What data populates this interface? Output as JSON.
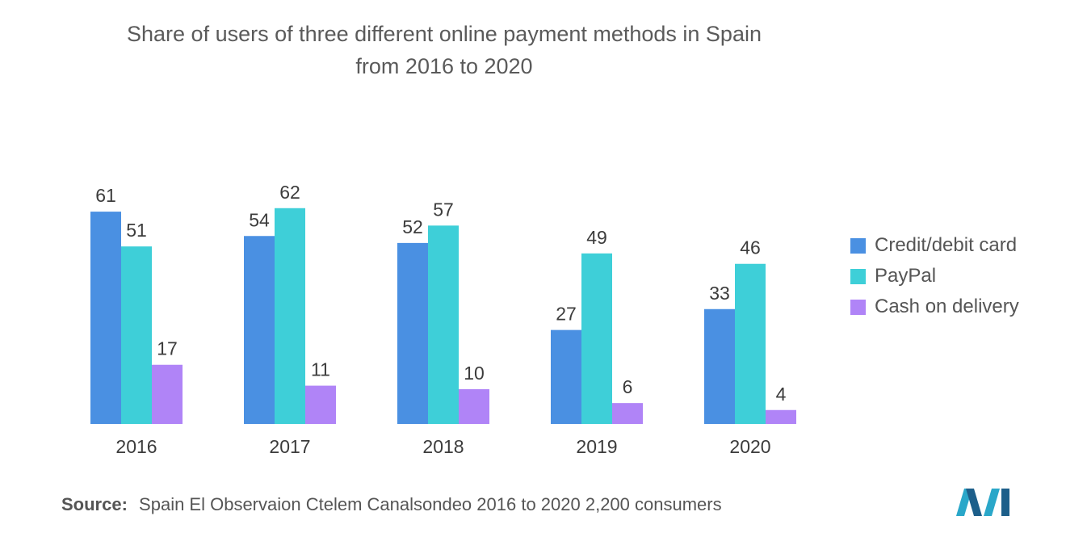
{
  "title_line1": "Share of users of three different online payment methods in Spain",
  "title_line2": "from 2016 to 2020",
  "source_label": "Source:",
  "source_text": "Spain El Observaion Ctelem Canalsondeo 2016 to 2020 2,200 consumers",
  "chart_data": {
    "type": "bar",
    "title": "Share of users of three different online payment methods in Spain from 2016 to 2020",
    "categories": [
      "2016",
      "2017",
      "2018",
      "2019",
      "2020"
    ],
    "series": [
      {
        "name": "Credit/debit card",
        "values": [
          61,
          54,
          52,
          27,
          33
        ],
        "color": "#4a90e2"
      },
      {
        "name": "PayPal",
        "values": [
          51,
          62,
          57,
          49,
          46
        ],
        "color": "#3ecfd8"
      },
      {
        "name": "Cash on delivery",
        "values": [
          17,
          11,
          10,
          6,
          4
        ],
        "color": "#b084f7"
      }
    ],
    "ylim": [
      0,
      62
    ],
    "grid": false,
    "legend_position": "right"
  }
}
